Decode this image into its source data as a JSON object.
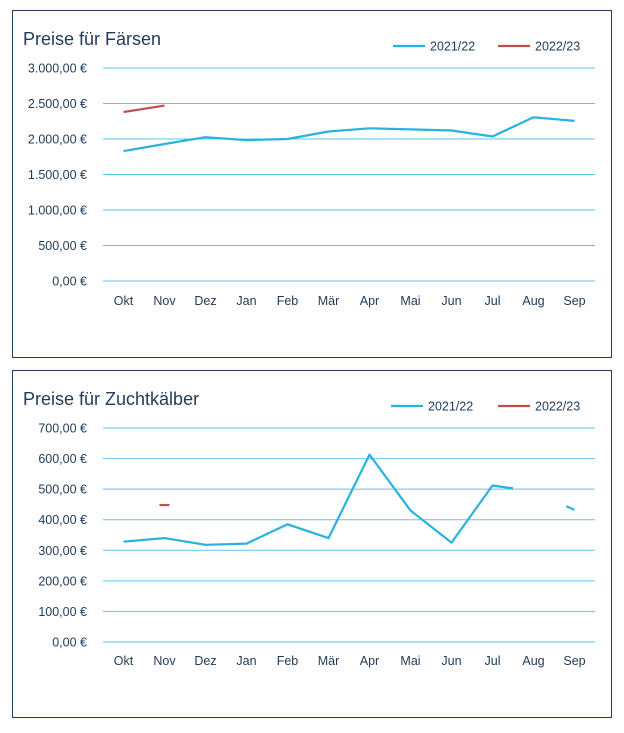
{
  "charts": [
    {
      "id": "faersen",
      "chart_data": {
        "type": "line",
        "title": "Preise für Färsen",
        "categories": [
          "Okt",
          "Nov",
          "Dez",
          "Jan",
          "Feb",
          "Mär",
          "Apr",
          "Mai",
          "Jun",
          "Jul",
          "Aug",
          "Sep"
        ],
        "y_ticks": [
          "0,00 €",
          "500,00 €",
          "1.000,00 €",
          "1.500,00 €",
          "2.000,00 €",
          "2.500,00 €",
          "3.000,00 €"
        ],
        "ylim": [
          0,
          3000
        ],
        "grid": true,
        "legend_position": "top-right",
        "series": [
          {
            "name": "2021/22",
            "color": "#29b2e0",
            "values": [
              1830,
              1930,
              2025,
              1985,
              2000,
              2105,
              2150,
              2135,
              2120,
              2035,
              2305,
              2255
            ]
          },
          {
            "name": "2022/23",
            "color": "#c0504d",
            "values": [
              2380,
              2470,
              null,
              null,
              null,
              null,
              null,
              null,
              null,
              null,
              null,
              null
            ]
          }
        ]
      }
    },
    {
      "id": "zuchtkaelber",
      "chart_data": {
        "type": "line",
        "title": "Preise für Zuchtkälber",
        "categories": [
          "Okt",
          "Nov",
          "Dez",
          "Jan",
          "Feb",
          "Mär",
          "Apr",
          "Mai",
          "Jun",
          "Jul",
          "Aug",
          "Sep"
        ],
        "y_ticks": [
          "0,00 €",
          "100,00 €",
          "200,00 €",
          "300,00 €",
          "400,00 €",
          "500,00 €",
          "600,00 €",
          "700,00 €"
        ],
        "ylim": [
          0,
          700
        ],
        "grid": true,
        "legend_position": "top-right",
        "series": [
          {
            "name": "2021/22",
            "color": "#29b2e0",
            "values": [
              328,
              340,
              318,
              322,
              385,
              340,
              613,
              430,
              325,
              512,
              493,
              432
            ],
            "segments": [
              [
                0,
                9.5
              ],
              [
                10.8,
                11
              ]
            ]
          },
          {
            "name": "2022/23",
            "color": "#c0504d",
            "values": [
              null,
              448,
              null,
              null,
              null,
              null,
              null,
              null,
              null,
              null,
              null,
              null
            ]
          }
        ]
      }
    }
  ]
}
